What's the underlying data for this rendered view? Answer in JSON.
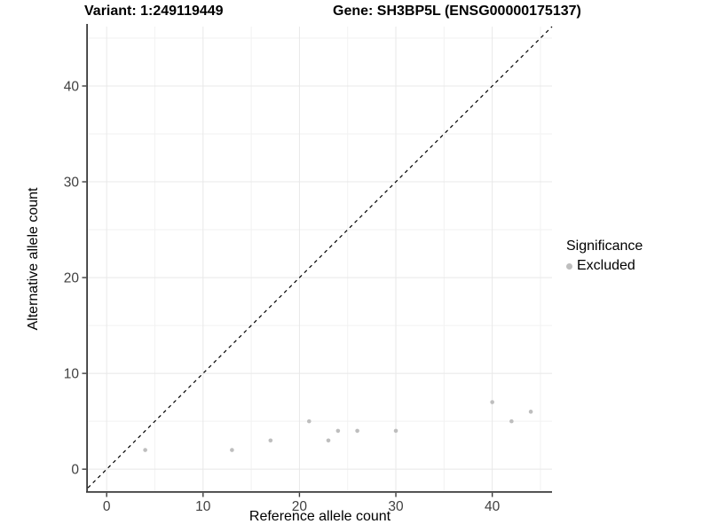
{
  "figure": {
    "title_left": "Variant: 1:249119449",
    "title_right": "Gene: SH3BP5L (ENSG00000175137)"
  },
  "chart_data": {
    "type": "scatter",
    "xlabel": "Reference allele count",
    "ylabel": "Alternative allele count",
    "xlim": [
      -1.95,
      46.2
    ],
    "ylim": [
      -2.3,
      46.2
    ],
    "x_major_ticks": [
      0,
      10,
      20,
      30,
      40
    ],
    "y_major_ticks": [
      0,
      10,
      20,
      30,
      40
    ],
    "x_minor_gridlines": [
      5,
      15,
      25,
      35,
      45
    ],
    "y_minor_gridlines": [
      5,
      15,
      25,
      35,
      45
    ],
    "grid": "on",
    "legend_position": "right",
    "identity_line": {
      "slope": 1,
      "intercept": 0,
      "style": "dashed",
      "color": "#000000"
    },
    "series": [
      {
        "name": "Excluded",
        "color": "#BEBEBE",
        "points": [
          [
            4,
            2
          ],
          [
            13,
            2
          ],
          [
            17,
            3
          ],
          [
            21,
            5
          ],
          [
            23,
            3
          ],
          [
            24,
            4
          ],
          [
            26,
            4
          ],
          [
            30,
            4
          ],
          [
            40,
            7
          ],
          [
            42,
            5
          ],
          [
            44,
            6
          ]
        ]
      }
    ],
    "legend": {
      "title": "Significance",
      "items": [
        {
          "label": "Excluded",
          "color": "#BEBEBE"
        }
      ]
    },
    "colors": {
      "point": "#BEBEBE",
      "grid_major": "#E8E8E8",
      "grid_minor": "#F2F2F2",
      "axis_line": "#3C3C3C",
      "tick_label": "#404040",
      "background": "#FFFFFF"
    }
  }
}
